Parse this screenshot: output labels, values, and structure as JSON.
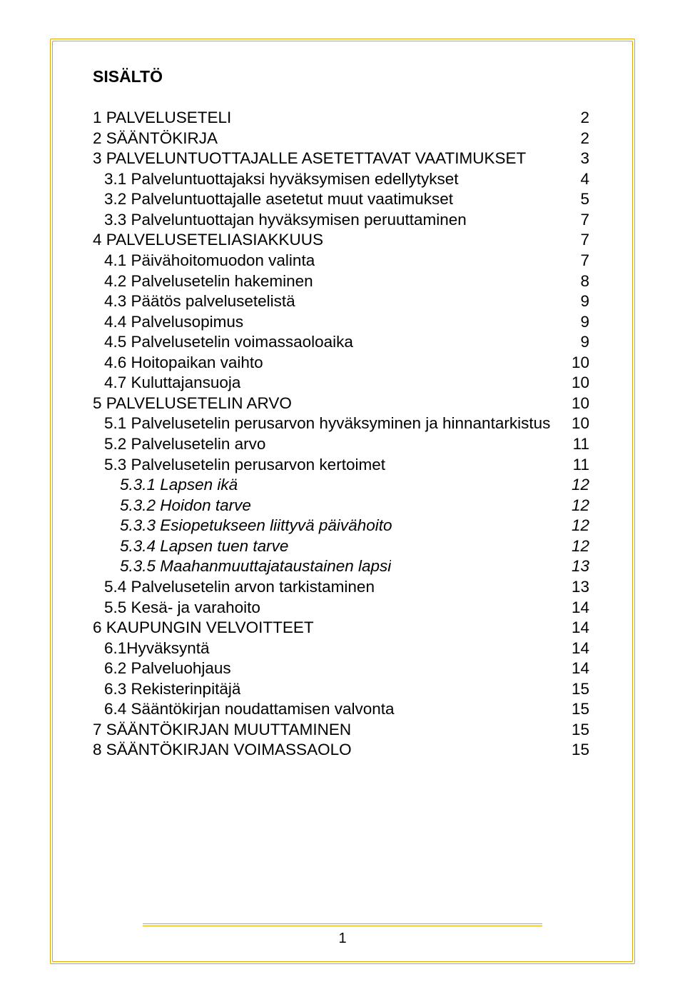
{
  "colors": {
    "border": "#e0a800",
    "background": "#ffffff",
    "text": "#000000"
  },
  "typography": {
    "font_family": "Arial",
    "title_fontsize_pt": 17,
    "body_fontsize_pt": 17,
    "line_height": 1.27,
    "title_weight": "bold"
  },
  "title": "SISÄLTÖ",
  "page_number": "1",
  "toc": [
    {
      "label": "1 PALVELUSETELI",
      "page": "2",
      "level": 0,
      "italic": false
    },
    {
      "label": "2 SÄÄNTÖKIRJA",
      "page": "2",
      "level": 0,
      "italic": false
    },
    {
      "label": "3 PALVELUNTUOTTAJALLE ASETETTAVAT VAATIMUKSET",
      "page": "3",
      "level": 0,
      "italic": false
    },
    {
      "label": "3.1 Palveluntuottajaksi hyväksymisen edellytykset",
      "page": "4",
      "level": 1,
      "italic": false
    },
    {
      "label": "3.2 Palveluntuottajalle asetetut muut vaatimukset",
      "page": "5",
      "level": 1,
      "italic": false
    },
    {
      "label": "3.3 Palveluntuottajan hyväksymisen peruuttaminen",
      "page": "7",
      "level": 1,
      "italic": false
    },
    {
      "label": "4 PALVELUSETELIASIAKKUUS",
      "page": "7",
      "level": 0,
      "italic": false
    },
    {
      "label": "4.1 Päivähoitomuodon valinta",
      "page": "7",
      "level": 1,
      "italic": false
    },
    {
      "label": "4.2 Palvelusetelin hakeminen",
      "page": "8",
      "level": 1,
      "italic": false
    },
    {
      "label": "4.3 Päätös palvelusetelistä",
      "page": "9",
      "level": 1,
      "italic": false
    },
    {
      "label": "4.4 Palvelusopimus",
      "page": "9",
      "level": 1,
      "italic": false
    },
    {
      "label": "4.5 Palvelusetelin voimassaoloaika",
      "page": "9",
      "level": 1,
      "italic": false
    },
    {
      "label": "4.6 Hoitopaikan vaihto",
      "page": "10",
      "level": 1,
      "italic": false
    },
    {
      "label": "4.7 Kuluttajansuoja",
      "page": "10",
      "level": 1,
      "italic": false
    },
    {
      "label": "5 PALVELUSETELIN ARVO",
      "page": "10",
      "level": 0,
      "italic": false
    },
    {
      "label": "5.1 Palvelusetelin perusarvon hyväksyminen ja hinnantarkistus",
      "page": "10",
      "level": 1,
      "italic": false
    },
    {
      "label": "5.2 Palvelusetelin arvo",
      "page": "11",
      "level": 1,
      "italic": false
    },
    {
      "label": "5.3 Palvelusetelin perusarvon kertoimet",
      "page": "11",
      "level": 1,
      "italic": false
    },
    {
      "label": "5.3.1 Lapsen ikä",
      "page": "12",
      "level": 2,
      "italic": true
    },
    {
      "label": "5.3.2 Hoidon tarve",
      "page": "12",
      "level": 2,
      "italic": true
    },
    {
      "label": "5.3.3 Esiopetukseen liittyvä päivähoito",
      "page": "12",
      "level": 2,
      "italic": true
    },
    {
      "label": "5.3.4 Lapsen tuen tarve",
      "page": "12",
      "level": 2,
      "italic": true
    },
    {
      "label": "5.3.5 Maahanmuuttajataustainen lapsi",
      "page": "13",
      "level": 2,
      "italic": true
    },
    {
      "label": "5.4 Palvelusetelin arvon tarkistaminen",
      "page": "13",
      "level": 1,
      "italic": false
    },
    {
      "label": "5.5 Kesä- ja varahoito",
      "page": "14",
      "level": 1,
      "italic": false
    },
    {
      "label": "6 KAUPUNGIN VELVOITTEET",
      "page": "14",
      "level": 0,
      "italic": false
    },
    {
      "label": "6.1Hyväksyntä",
      "page": "14",
      "level": 1,
      "italic": false
    },
    {
      "label": "6.2 Palveluohjaus",
      "page": "14",
      "level": 1,
      "italic": false
    },
    {
      "label": "6.3 Rekisterinpitäjä",
      "page": "15",
      "level": 1,
      "italic": false
    },
    {
      "label": "6.4 Sääntökirjan noudattamisen valvonta",
      "page": "15",
      "level": 1,
      "italic": false
    },
    {
      "label": "7 SÄÄNTÖKIRJAN MUUTTAMINEN",
      "page": "15",
      "level": 0,
      "italic": false
    },
    {
      "label": "8 SÄÄNTÖKIRJAN VOIMASSAOLO",
      "page": "15",
      "level": 0,
      "italic": false
    }
  ]
}
